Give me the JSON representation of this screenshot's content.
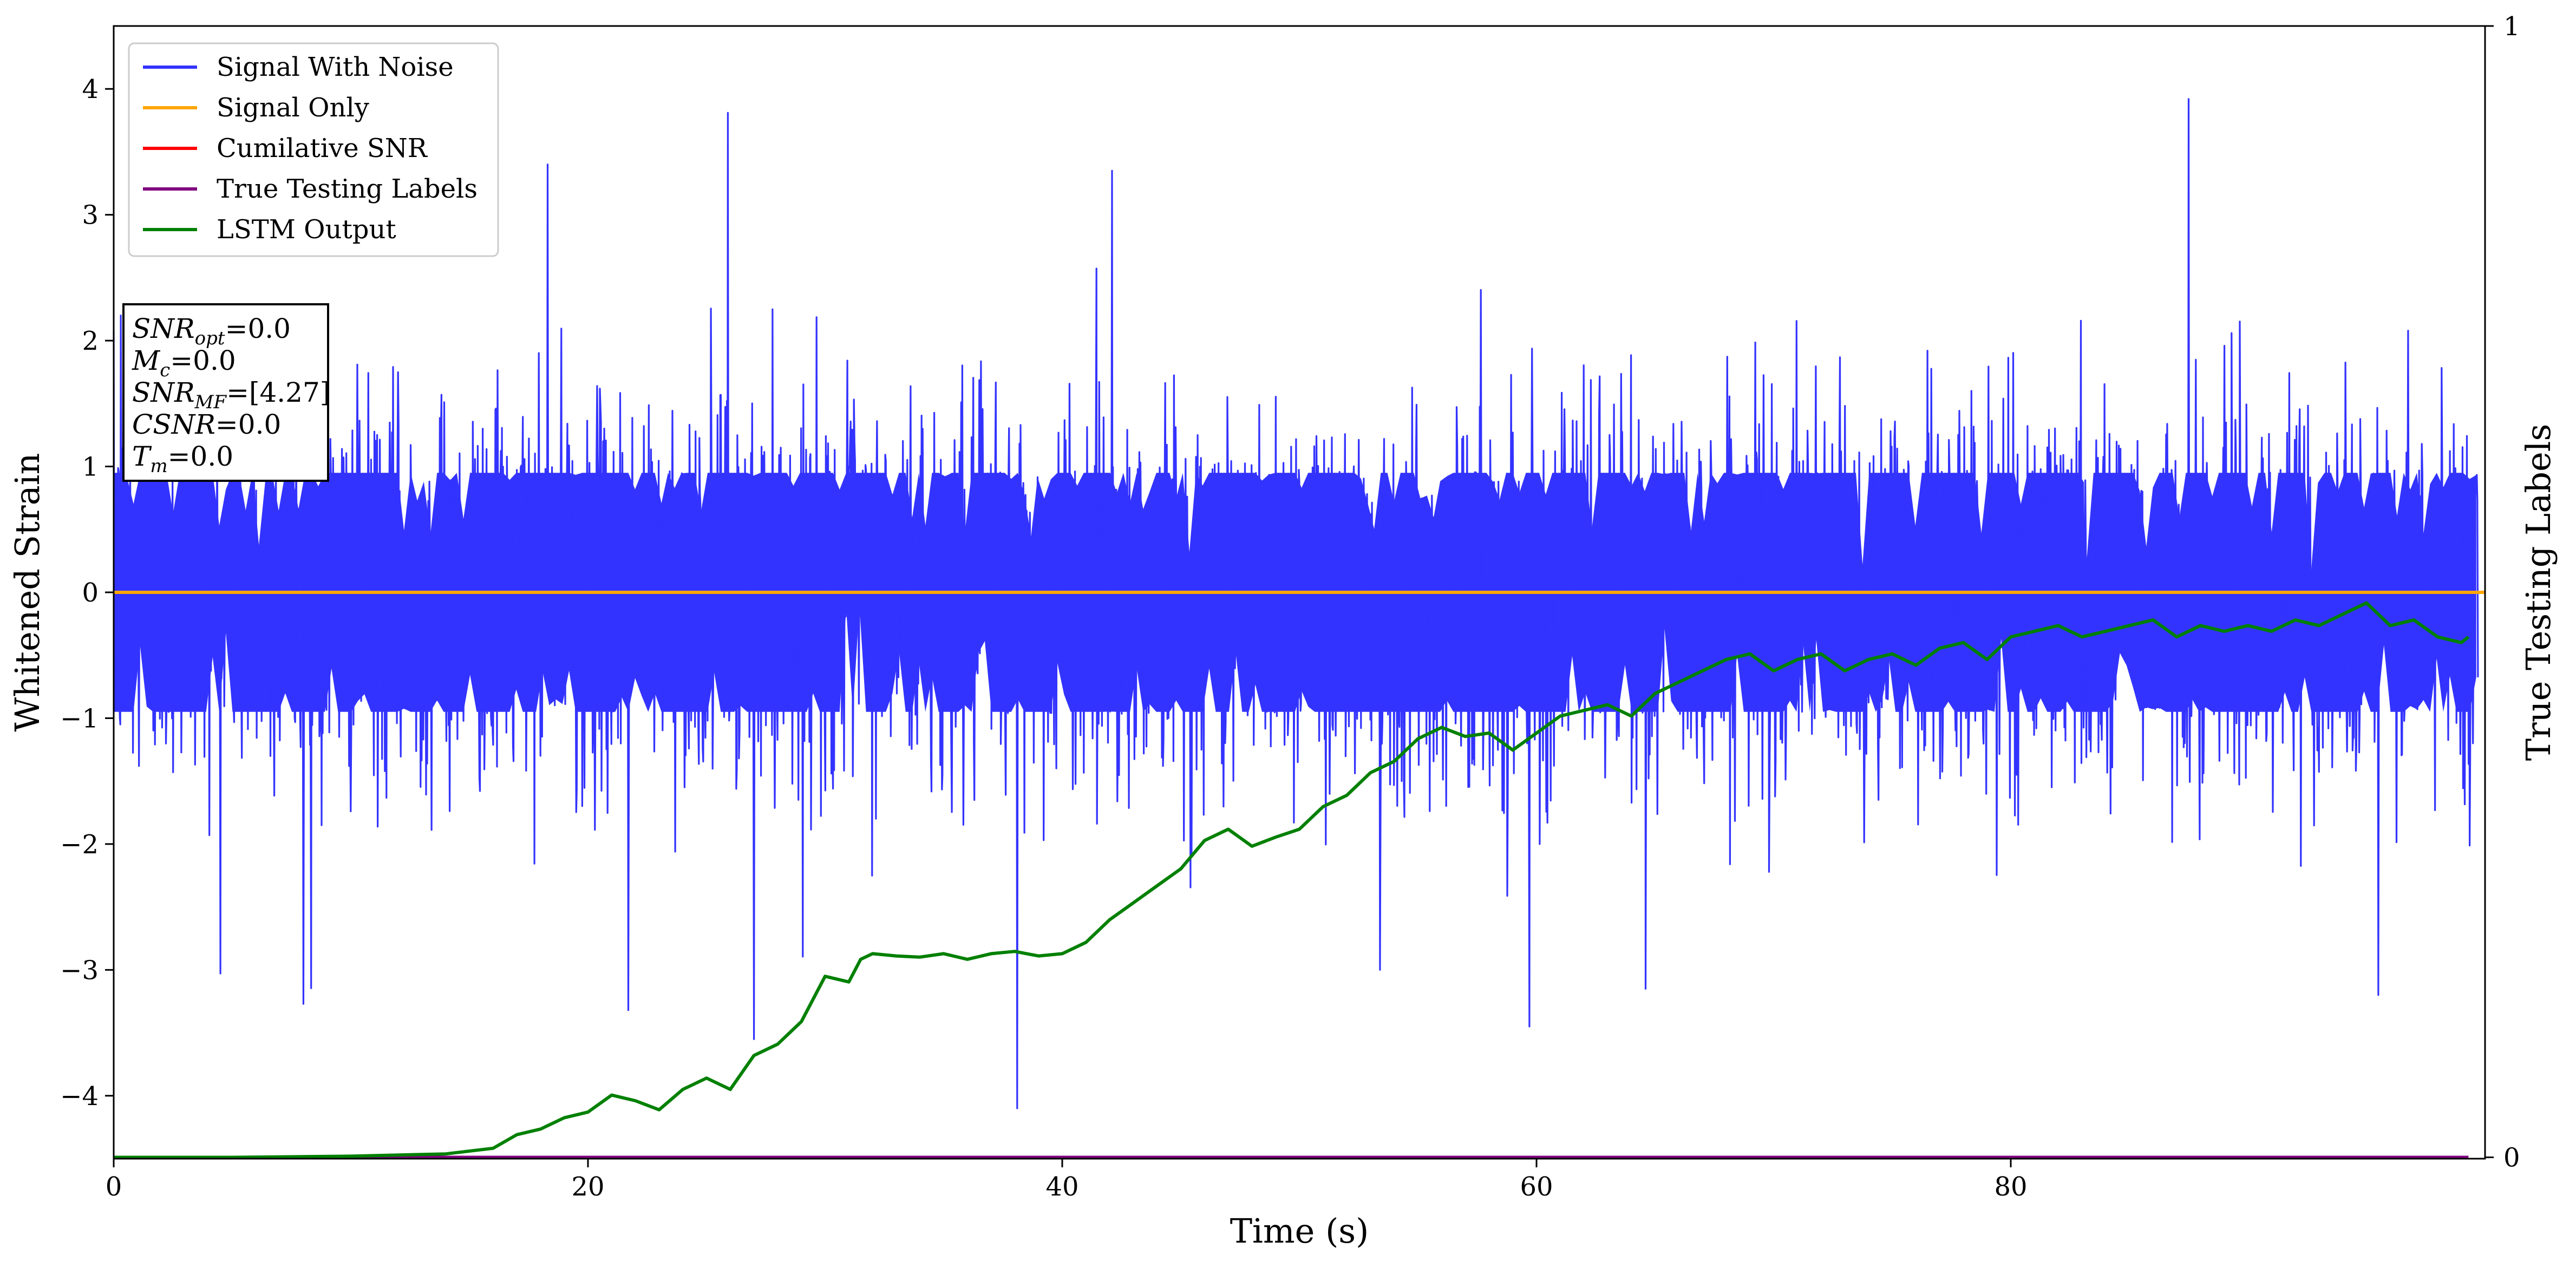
{
  "chart_data": {
    "type": "line",
    "xlabel": "Time (s)",
    "ylabel": "Whitened Strain",
    "y2label": "True Testing Labels",
    "xlim": [
      0,
      100
    ],
    "ylim": [
      -4.5,
      4.5
    ],
    "y2lim": [
      0,
      1
    ],
    "x_ticks": [
      0,
      20,
      40,
      60,
      80
    ],
    "y_ticks": [
      -4,
      -3,
      -2,
      -1,
      0,
      1,
      2,
      3,
      4
    ],
    "y2_ticks": [
      0,
      1
    ],
    "legend_position": "top-left",
    "grid": false,
    "series": [
      {
        "name": "Signal With Noise",
        "color": "#3333ff",
        "noise_approx": {
          "std": 0.75,
          "x_range": [
            0,
            100
          ],
          "y_range": [
            -4.1,
            3.9
          ]
        },
        "x": [
          0.3,
          8.0,
          18.3,
          21.7,
          25.9,
          27.0,
          38.1,
          42.1,
          53.4,
          59.7,
          64.6,
          87.5,
          95.5
        ],
        "y": [
          2.2,
          -3.27,
          3.4,
          -3.32,
          3.81,
          -3.55,
          -4.1,
          3.35,
          -3.0,
          -3.45,
          -3.15,
          3.92,
          -3.2
        ]
      },
      {
        "name": "Signal Only",
        "color": "#ffa500",
        "x": [
          0,
          100
        ],
        "y": [
          0,
          0
        ]
      },
      {
        "name": "Cumilative SNR",
        "color": "#ff0000",
        "x": [],
        "y": []
      },
      {
        "name": "True Testing Labels",
        "color": "#800080",
        "axis": "right",
        "x": [
          0,
          99.3
        ],
        "y": [
          0,
          0
        ]
      },
      {
        "name": "LSTM Output",
        "color": "#008000",
        "axis": "right",
        "x": [
          0,
          5,
          10,
          14,
          16,
          17,
          18,
          19,
          20,
          21,
          22,
          23,
          24,
          25,
          26,
          27,
          28,
          29,
          30,
          31,
          31.5,
          32,
          33,
          34,
          35,
          36,
          37,
          38,
          39,
          40,
          41,
          42,
          43,
          44,
          45,
          46,
          47,
          48,
          49,
          50,
          51,
          52,
          53,
          54,
          55,
          56,
          57,
          58,
          59,
          60,
          61,
          62,
          63,
          64,
          65,
          66,
          67,
          68,
          69,
          70,
          71,
          72,
          73,
          74,
          75,
          76,
          77,
          78,
          79,
          80,
          81,
          82,
          83,
          84,
          85,
          86,
          87,
          88,
          89,
          90,
          91,
          92,
          93,
          94,
          95,
          96,
          97,
          98,
          99,
          99.3
        ],
        "y": [
          0.0,
          0.0,
          0.001,
          0.003,
          0.008,
          0.02,
          0.025,
          0.035,
          0.04,
          0.055,
          0.05,
          0.042,
          0.06,
          0.07,
          0.06,
          0.09,
          0.1,
          0.12,
          0.16,
          0.155,
          0.175,
          0.18,
          0.178,
          0.177,
          0.18,
          0.175,
          0.18,
          0.182,
          0.178,
          0.18,
          0.19,
          0.21,
          0.225,
          0.24,
          0.255,
          0.28,
          0.29,
          0.275,
          0.283,
          0.29,
          0.31,
          0.32,
          0.34,
          0.35,
          0.37,
          0.38,
          0.372,
          0.375,
          0.36,
          0.375,
          0.39,
          0.395,
          0.4,
          0.39,
          0.41,
          0.42,
          0.43,
          0.44,
          0.445,
          0.43,
          0.44,
          0.445,
          0.43,
          0.44,
          0.445,
          0.435,
          0.45,
          0.455,
          0.44,
          0.46,
          0.465,
          0.47,
          0.46,
          0.465,
          0.47,
          0.475,
          0.46,
          0.47,
          0.465,
          0.47,
          0.465,
          0.475,
          0.47,
          0.48,
          0.49,
          0.47,
          0.475,
          0.46,
          0.455,
          0.46
        ]
      }
    ],
    "annotation_lines": [
      {
        "label": "SNR",
        "sub": "opt",
        "value": "=0.0"
      },
      {
        "label": "M",
        "sub": "c",
        "value": "=0.0"
      },
      {
        "label": "SNR",
        "sub": "MF",
        "value": "=[4.27]"
      },
      {
        "label": "CSNR",
        "sub": "",
        "value": "=0.0"
      },
      {
        "label": "T",
        "sub": "m",
        "value": "=0.0"
      }
    ]
  }
}
